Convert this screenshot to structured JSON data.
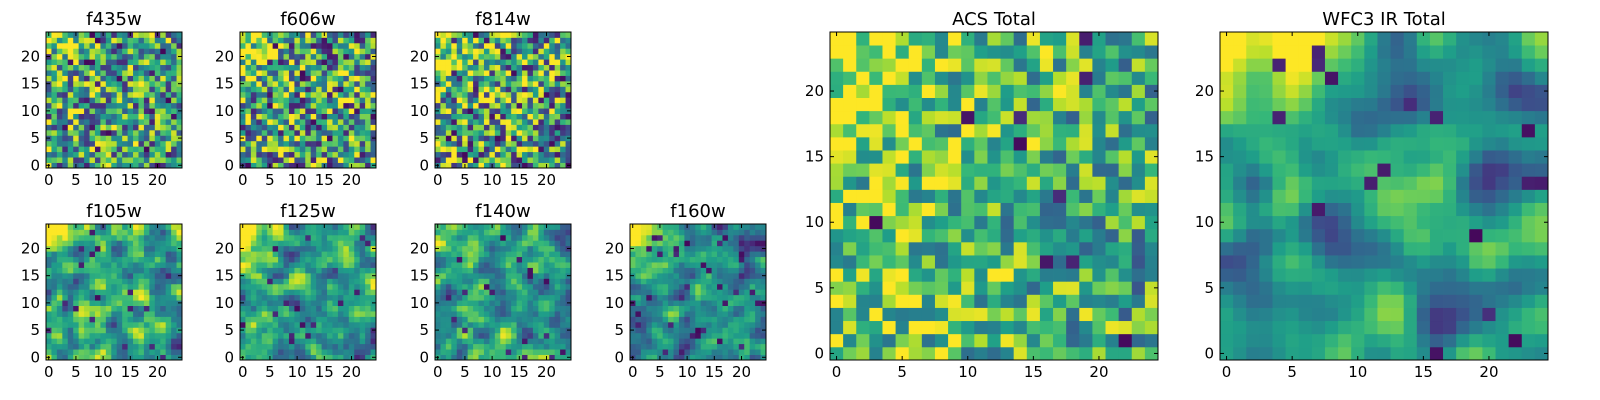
{
  "chart_data": [
    {
      "type": "heatmap",
      "title": "f435w",
      "xticks": [
        0,
        5,
        10,
        15,
        20
      ],
      "yticks": [
        0,
        5,
        10,
        15,
        20
      ],
      "grid_size": 25,
      "seed": 11,
      "smooth": 0,
      "bias": {
        "left": 0.05,
        "topleft": 0.1
      },
      "base": 0.55,
      "noise": 0.45,
      "darkfrac": 0.05
    },
    {
      "type": "heatmap",
      "title": "f606w",
      "xticks": [
        0,
        5,
        10,
        15,
        20
      ],
      "yticks": [
        0,
        5,
        10,
        15,
        20
      ],
      "grid_size": 25,
      "seed": 22,
      "smooth": 0,
      "bias": {
        "left": 0.05,
        "topleft": 0.2
      },
      "base": 0.55,
      "noise": 0.5,
      "darkfrac": 0.06
    },
    {
      "type": "heatmap",
      "title": "f814w",
      "xticks": [
        0,
        5,
        10,
        15,
        20
      ],
      "yticks": [
        0,
        5,
        10,
        15,
        20
      ],
      "grid_size": 25,
      "seed": 33,
      "smooth": 0,
      "bias": {
        "left": 0.08,
        "topleft": 0.2
      },
      "base": 0.55,
      "noise": 0.5,
      "darkfrac": 0.07
    },
    {
      "type": "heatmap",
      "title": "f105w",
      "xticks": [
        0,
        5,
        10,
        15,
        20
      ],
      "yticks": [
        0,
        5,
        10,
        15,
        20
      ],
      "grid_size": 25,
      "seed": 44,
      "smooth": 1,
      "bias": {
        "left": 0.05,
        "topleft": 0.15
      },
      "base": 0.55,
      "noise": 0.45,
      "darkfrac": 0.03
    },
    {
      "type": "heatmap",
      "title": "f125w",
      "xticks": [
        0,
        5,
        10,
        15,
        20
      ],
      "yticks": [
        0,
        5,
        10,
        15,
        20
      ],
      "grid_size": 25,
      "seed": 55,
      "smooth": 1,
      "bias": {
        "left": 0.05,
        "topleft": 0.2
      },
      "base": 0.55,
      "noise": 0.45,
      "darkfrac": 0.04
    },
    {
      "type": "heatmap",
      "title": "f140w",
      "xticks": [
        0,
        5,
        10,
        15,
        20
      ],
      "yticks": [
        0,
        5,
        10,
        15,
        20
      ],
      "grid_size": 25,
      "seed": 66,
      "smooth": 1,
      "bias": {
        "left": 0.05,
        "topleft": 0.15
      },
      "base": 0.55,
      "noise": 0.4,
      "darkfrac": 0.03
    },
    {
      "type": "heatmap",
      "title": "f160w",
      "xticks": [
        0,
        5,
        10,
        15,
        20
      ],
      "yticks": [
        0,
        5,
        10,
        15,
        20
      ],
      "grid_size": 25,
      "seed": 77,
      "smooth": 1,
      "bias": {
        "left": 0.0,
        "topleft": 0.3
      },
      "base": 0.45,
      "noise": 0.4,
      "darkfrac": 0.05
    },
    {
      "type": "heatmap",
      "title": "ACS Total",
      "xticks": [
        0,
        5,
        10,
        15,
        20
      ],
      "yticks": [
        0,
        5,
        10,
        15,
        20
      ],
      "grid_size": 25,
      "seed": 88,
      "smooth": 0,
      "bias": {
        "left": 0.15,
        "topleft": 0.15
      },
      "base": 0.6,
      "noise": 0.35,
      "darkfrac": 0.025
    },
    {
      "type": "heatmap",
      "title": "WFC3 IR Total",
      "xticks": [
        0,
        5,
        10,
        15,
        20
      ],
      "yticks": [
        0,
        5,
        10,
        15,
        20
      ],
      "grid_size": 25,
      "seed": 99,
      "smooth": 2,
      "bias": {
        "left": 0.05,
        "topleft": 0.35
      },
      "base": 0.5,
      "noise": 0.35,
      "darkfrac": 0.02
    }
  ]
}
